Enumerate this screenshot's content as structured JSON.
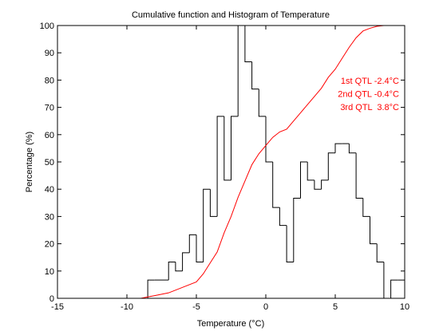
{
  "chart_data": {
    "type": "histogram",
    "title": "Cumulative function and Histogram of Temperature",
    "x_label": "Temperature (°C)",
    "y_label": "Percentage (%)",
    "bins": [
      -8.5,
      -8,
      -7.5,
      -7,
      -6.5,
      -6,
      -5.5,
      -5,
      -4.5,
      -4,
      -3.5,
      -3,
      -2.5,
      -2,
      -1.5,
      -1,
      -0.5,
      0,
      0.5,
      1,
      1.5,
      2,
      2.5,
      3,
      3.5,
      4,
      4.5,
      5,
      5.5,
      6,
      6.5,
      7,
      7.5,
      8,
      8.5,
      9,
      9.5,
      10
    ],
    "values": [
      6.7,
      6.7,
      6.7,
      13.3,
      10,
      16.7,
      23.3,
      13.3,
      40,
      30,
      66.7,
      43.3,
      66.7,
      100,
      86.7,
      76.7,
      66.7,
      50,
      33.3,
      26.7,
      13.3,
      36.7,
      50,
      43.3,
      40,
      43.3,
      53.3,
      56.7,
      56.7,
      53.3,
      36.7,
      30,
      20,
      13.3,
      0,
      6.7,
      6.7
    ],
    "color": "#000000",
    "cumulative": {
      "x": [
        -15,
        -9,
        -8.5,
        -8,
        -7,
        -6,
        -5,
        -4.5,
        -4,
        -3.5,
        -3,
        -2.5,
        -2,
        -1.5,
        -1,
        -0.5,
        0,
        0.5,
        1,
        1.5,
        2,
        2.5,
        3,
        3.5,
        4,
        4.5,
        5,
        5.5,
        6,
        6.5,
        7,
        7.5,
        8,
        8.5,
        10
      ],
      "values": [
        0,
        0,
        0.5,
        1,
        2,
        4,
        6,
        9,
        13,
        17,
        24,
        30,
        37,
        43,
        49,
        53,
        56,
        59,
        61,
        62,
        65,
        68,
        71,
        74,
        77,
        81,
        84,
        88,
        92,
        95.5,
        98,
        99,
        99.7,
        100,
        100
      ],
      "color": "#ff0000"
    },
    "annotations": [
      "1st QTL -2.4°C",
      "2nd QTL -0.4°C",
      "3rd QTL  3.8°C"
    ],
    "annotation_color": "#ff0000",
    "xlim": [
      -15,
      10
    ],
    "xticks": [
      -15,
      -10,
      -5,
      0,
      5,
      10
    ],
    "ylim": [
      0,
      100
    ],
    "yticks": [
      0,
      10,
      20,
      30,
      40,
      50,
      60,
      70,
      80,
      90,
      100
    ],
    "grid": false
  }
}
